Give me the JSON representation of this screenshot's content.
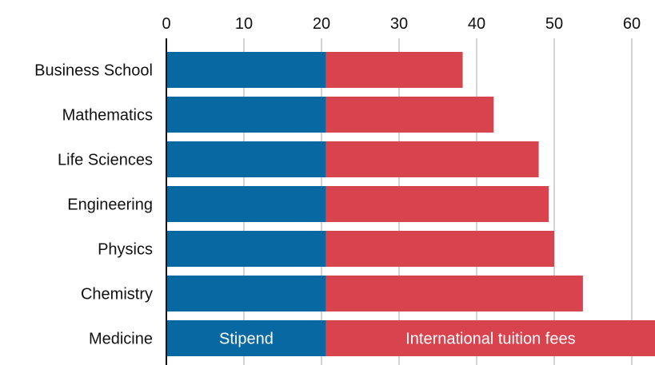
{
  "chart_data": {
    "type": "bar",
    "orientation": "horizontal",
    "stacked": true,
    "title": "",
    "xlabel": "",
    "ylabel": "",
    "categories": [
      "Business School",
      "Mathematics",
      "Life Sciences",
      "Engineering",
      "Physics",
      "Chemistry",
      "Medicine"
    ],
    "series": [
      {
        "name": "Stipend",
        "color": "#0868a1",
        "values": [
          20.6,
          20.6,
          20.6,
          20.6,
          20.6,
          20.6,
          20.6
        ]
      },
      {
        "name": "International tuition fees",
        "color": "#d9434e",
        "values": [
          17.6,
          21.6,
          27.4,
          28.7,
          29.4,
          33.1,
          42.4
        ]
      }
    ],
    "xlim": [
      0,
      63
    ],
    "xticks": [
      0,
      10,
      20,
      30,
      40,
      50,
      60
    ],
    "tick_position": "top",
    "grid": true,
    "segment_labels_on_category": "Medicine"
  }
}
